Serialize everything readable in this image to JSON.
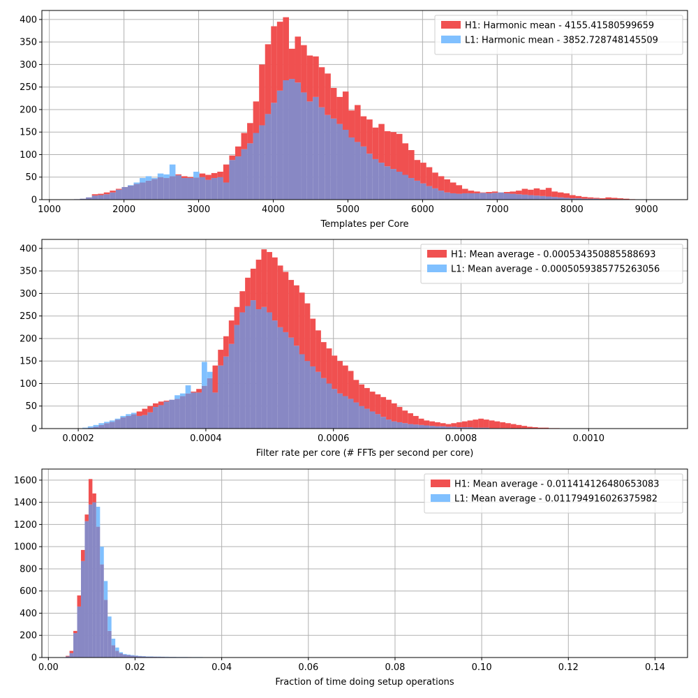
{
  "colors": {
    "h1": "#f05050",
    "l1": "#80c0ff",
    "overlap": "#8888c4",
    "grid": "#b0b0b0",
    "frame": "#000000"
  },
  "chart_data": [
    {
      "type": "bar",
      "xlabel": "Templates per Core",
      "xlim": [
        900,
        9550
      ],
      "ylim": [
        0,
        420
      ],
      "xticks": [
        1000,
        2000,
        3000,
        4000,
        5000,
        6000,
        7000,
        8000,
        9000
      ],
      "xtick_labels": [
        "1000",
        "2000",
        "3000",
        "4000",
        "5000",
        "6000",
        "7000",
        "8000",
        "9000"
      ],
      "yticks": [
        0,
        50,
        100,
        150,
        200,
        250,
        300,
        350,
        400
      ],
      "ytick_labels": [
        "0",
        "50",
        "100",
        "150",
        "200",
        "250",
        "300",
        "350",
        "400"
      ],
      "grid": true,
      "legend_position": "upper right",
      "bins": {
        "start": 1250,
        "width": 80
      },
      "series": [
        {
          "name": "H1: Harmonic mean  - 4155.41580599659",
          "color_key": "h1",
          "values": [
            0,
            1,
            2,
            5,
            12,
            13,
            16,
            20,
            24,
            28,
            31,
            35,
            38,
            42,
            46,
            50,
            48,
            52,
            56,
            52,
            50,
            49,
            58,
            55,
            59,
            62,
            78,
            98,
            118,
            148,
            170,
            218,
            300,
            345,
            385,
            395,
            405,
            335,
            362,
            343,
            320,
            318,
            294,
            280,
            248,
            228,
            240,
            198,
            210,
            185,
            178,
            160,
            168,
            152,
            150,
            146,
            125,
            110,
            88,
            82,
            72,
            60,
            52,
            45,
            38,
            32,
            24,
            20,
            18,
            16,
            17,
            18,
            16,
            17,
            18,
            20,
            24,
            22,
            25,
            22,
            26,
            18,
            16,
            14,
            10,
            8,
            6,
            5,
            4,
            3,
            5,
            4,
            3,
            2,
            1,
            0,
            0,
            0,
            0,
            0,
            0,
            0
          ]
        },
        {
          "name": "L1: Harmonic mean  - 3852.728748145509",
          "color_key": "l1",
          "values": [
            0,
            1,
            2,
            5,
            9,
            10,
            12,
            16,
            22,
            28,
            32,
            38,
            48,
            52,
            48,
            58,
            56,
            78,
            54,
            48,
            48,
            62,
            50,
            44,
            48,
            50,
            38,
            88,
            96,
            112,
            125,
            148,
            165,
            190,
            215,
            242,
            265,
            268,
            260,
            238,
            218,
            228,
            205,
            188,
            180,
            168,
            155,
            138,
            128,
            118,
            102,
            90,
            82,
            74,
            68,
            62,
            55,
            48,
            42,
            36,
            30,
            25,
            20,
            16,
            14,
            13,
            14,
            14,
            14,
            15,
            14,
            15,
            16,
            14,
            13,
            12,
            11,
            10,
            9,
            8,
            7,
            6,
            5,
            4,
            3,
            3,
            2,
            2,
            2,
            1,
            1,
            1,
            1,
            0,
            0,
            0,
            0,
            0,
            0,
            0,
            0,
            0
          ]
        }
      ]
    },
    {
      "type": "bar",
      "xlabel": "Filter rate per core (# FFTs per second per core)",
      "xlim": [
        0.000143,
        0.001155
      ],
      "ylim": [
        0,
        420
      ],
      "xticks": [
        0.0002,
        0.0004,
        0.0006,
        0.0008,
        0.001
      ],
      "xtick_labels": [
        "0.0002",
        "0.0004",
        "0.0006",
        "0.0008",
        "0.0010"
      ],
      "yticks": [
        0,
        50,
        100,
        150,
        200,
        250,
        300,
        350,
        400
      ],
      "ytick_labels": [
        "0",
        "50",
        "100",
        "150",
        "200",
        "250",
        "300",
        "350",
        "400"
      ],
      "grid": true,
      "legend_position": "upper right",
      "bins": {
        "start": 0.000198,
        "width": 8.5e-06
      },
      "series": [
        {
          "name": "H1: Mean average - 0.000534350885588693",
          "color_key": "h1",
          "values": [
            0,
            1,
            2,
            4,
            8,
            12,
            15,
            20,
            25,
            28,
            32,
            38,
            44,
            50,
            56,
            60,
            62,
            64,
            66,
            72,
            78,
            82,
            88,
            95,
            112,
            140,
            175,
            205,
            240,
            270,
            305,
            335,
            355,
            375,
            398,
            392,
            380,
            362,
            348,
            330,
            318,
            302,
            278,
            244,
            218,
            192,
            178,
            162,
            150,
            140,
            128,
            108,
            98,
            90,
            82,
            76,
            70,
            64,
            56,
            48,
            40,
            34,
            28,
            22,
            18,
            16,
            14,
            12,
            10,
            12,
            14,
            16,
            18,
            20,
            22,
            20,
            18,
            16,
            14,
            12,
            10,
            8,
            6,
            4,
            3,
            2,
            2,
            1,
            1,
            0,
            0,
            0,
            0,
            0,
            0,
            0,
            0,
            0,
            0,
            0,
            0,
            0
          ]
        },
        {
          "name": "L1: Mean average - 0.0005059385775263056",
          "color_key": "l1",
          "values": [
            0,
            2,
            5,
            8,
            12,
            15,
            18,
            22,
            28,
            32,
            35,
            28,
            30,
            36,
            48,
            52,
            60,
            64,
            74,
            78,
            96,
            80,
            80,
            148,
            126,
            80,
            140,
            160,
            188,
            230,
            258,
            272,
            285,
            265,
            270,
            258,
            240,
            225,
            214,
            202,
            184,
            165,
            150,
            138,
            126,
            112,
            100,
            88,
            78,
            72,
            66,
            58,
            50,
            44,
            38,
            32,
            26,
            20,
            16,
            14,
            12,
            10,
            9,
            8,
            7,
            6,
            5,
            5,
            4,
            4,
            3,
            3,
            3,
            2,
            2,
            2,
            1,
            1,
            1,
            1,
            0,
            0,
            0,
            0,
            0,
            0,
            0,
            0,
            0,
            0,
            0,
            0,
            0,
            0,
            0,
            0,
            0,
            0,
            0,
            0,
            0,
            0
          ]
        }
      ]
    },
    {
      "type": "bar",
      "xlabel": "Fraction of time doing setup operations",
      "xlim": [
        -0.0015,
        0.1475
      ],
      "ylim": [
        0,
        1700
      ],
      "xticks": [
        0.0,
        0.02,
        0.04,
        0.06,
        0.08,
        0.1,
        0.12,
        0.14
      ],
      "xtick_labels": [
        "0.00",
        "0.02",
        "0.04",
        "0.06",
        "0.08",
        "0.10",
        "0.12",
        "0.14"
      ],
      "yticks": [
        0,
        200,
        400,
        600,
        800,
        1000,
        1200,
        1400,
        1600
      ],
      "ytick_labels": [
        "0",
        "200",
        "400",
        "600",
        "800",
        "1000",
        "1200",
        "1400",
        "1600"
      ],
      "grid": true,
      "legend_position": "upper right",
      "bins": {
        "start": 0.004,
        "width": 0.00088
      },
      "series": [
        {
          "name": "H1: Mean average - 0.011414126480653083",
          "color_key": "h1",
          "values": [
            15,
            60,
            240,
            560,
            970,
            1290,
            1610,
            1480,
            1180,
            840,
            520,
            240,
            110,
            60,
            38,
            26,
            22,
            18,
            15,
            12,
            10,
            8,
            8,
            7,
            6,
            6,
            5,
            5,
            5,
            4,
            4,
            4,
            4,
            3,
            3,
            3,
            3,
            2,
            2,
            2,
            2,
            2,
            2,
            2,
            1,
            1,
            1,
            1,
            1,
            1,
            1,
            1,
            1,
            1,
            0,
            0,
            0,
            0,
            0,
            0,
            0,
            0,
            0,
            0,
            0,
            0,
            0,
            0,
            0,
            0,
            0,
            0,
            0,
            0,
            0,
            0,
            0,
            0,
            0,
            0,
            0,
            0,
            0,
            0,
            0,
            0,
            0,
            0,
            0,
            0,
            0,
            0,
            0,
            0,
            0,
            0,
            0,
            0,
            0,
            0,
            0,
            0,
            0,
            0,
            0,
            0,
            0,
            0,
            0,
            0,
            0,
            0,
            0,
            0,
            0,
            0,
            0,
            0,
            0,
            0,
            0,
            0,
            0,
            0,
            0,
            0,
            0,
            0,
            0,
            0,
            0,
            0,
            0,
            0,
            0,
            0,
            0,
            0,
            0,
            0,
            0,
            0,
            0,
            0,
            0,
            0,
            0,
            0,
            0,
            0,
            0,
            0,
            0,
            0,
            0,
            0
          ]
        },
        {
          "name": "L1: Mean average - 0.011794916026375982",
          "color_key": "l1",
          "values": [
            10,
            40,
            220,
            460,
            870,
            1230,
            1380,
            1400,
            1360,
            1000,
            690,
            370,
            170,
            90,
            48,
            32,
            26,
            22,
            18,
            14,
            12,
            10,
            10,
            8,
            8,
            7,
            7,
            6,
            6,
            5,
            5,
            5,
            4,
            4,
            4,
            4,
            3,
            3,
            3,
            3,
            3,
            2,
            2,
            2,
            2,
            2,
            2,
            2,
            1,
            1,
            1,
            1,
            1,
            1,
            1,
            1,
            1,
            1,
            1,
            0,
            0,
            0,
            0,
            0,
            0,
            0,
            0,
            0,
            0,
            0,
            0,
            0,
            0,
            0,
            0,
            0,
            0,
            0,
            0,
            0,
            0,
            0,
            0,
            0,
            0,
            0,
            0,
            0,
            0,
            0,
            0,
            0,
            0,
            0,
            0,
            0,
            0,
            0,
            0,
            0,
            0,
            0,
            0,
            0,
            0,
            0,
            0,
            0,
            0,
            0,
            0,
            0,
            0,
            0,
            0,
            0,
            0,
            0,
            0,
            0,
            0,
            0,
            0,
            0,
            0,
            0,
            0,
            0,
            0,
            0,
            0,
            0,
            0,
            0,
            0,
            0,
            0,
            0,
            0,
            0,
            0,
            0,
            0,
            0,
            0,
            0,
            0,
            0,
            0,
            0,
            0,
            0,
            0,
            0,
            0
          ]
        }
      ]
    }
  ]
}
